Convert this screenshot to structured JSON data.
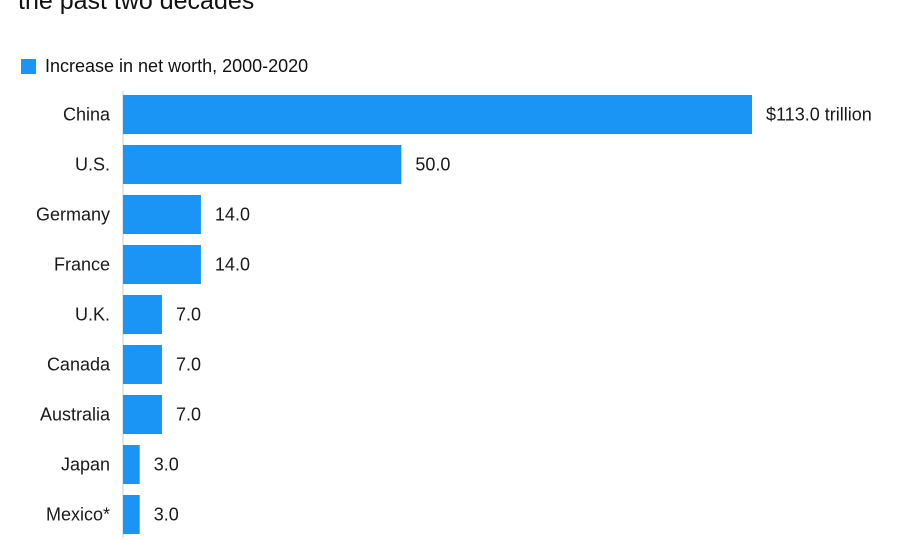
{
  "header": {
    "title": "the past two decades"
  },
  "legend": {
    "label": "Increase in net worth, 2000-2020",
    "color": "#1a95f5"
  },
  "chart_data": {
    "type": "bar",
    "orientation": "horizontal",
    "title": "the past two decades",
    "categories": [
      "China",
      "U.S.",
      "Germany",
      "France",
      "U.K.",
      "Canada",
      "Australia",
      "Japan",
      "Mexico*"
    ],
    "series": [
      {
        "name": "Increase in net worth, 2000-2020",
        "values": [
          113.0,
          50.0,
          14.0,
          14.0,
          7.0,
          7.0,
          7.0,
          3.0,
          3.0
        ],
        "labels": [
          "$113.0 trillion",
          "50.0",
          "14.0",
          "14.0",
          "7.0",
          "7.0",
          "7.0",
          "3.0",
          "3.0"
        ]
      }
    ],
    "xlim": [
      0,
      113
    ],
    "grid": false,
    "legend_position": "top-left"
  }
}
